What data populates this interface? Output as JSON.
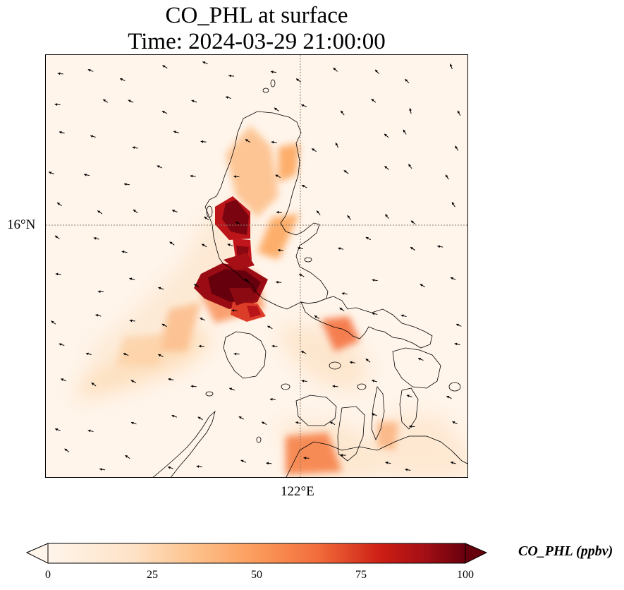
{
  "title": {
    "line1": "CO_PHL at surface",
    "line2": "Time: 2024-03-29 21:00:00"
  },
  "map": {
    "lat_label": "16°N",
    "lon_label": "122°E",
    "gridline_color": "#8c7a6b",
    "coastline_color": "#000000",
    "background_color": "#fff5eb",
    "vector_field": "wind arrows"
  },
  "colorbar": {
    "label": "CO_PHL (ppbv)",
    "min": 0,
    "max": 100,
    "ticks": [
      "0",
      "25",
      "50",
      "75",
      "100"
    ],
    "extend": "both",
    "colors": [
      "#fff5eb",
      "#fdd9b2",
      "#fdae6b",
      "#f57e4f",
      "#e0341c",
      "#a50f15",
      "#67000d"
    ]
  }
}
